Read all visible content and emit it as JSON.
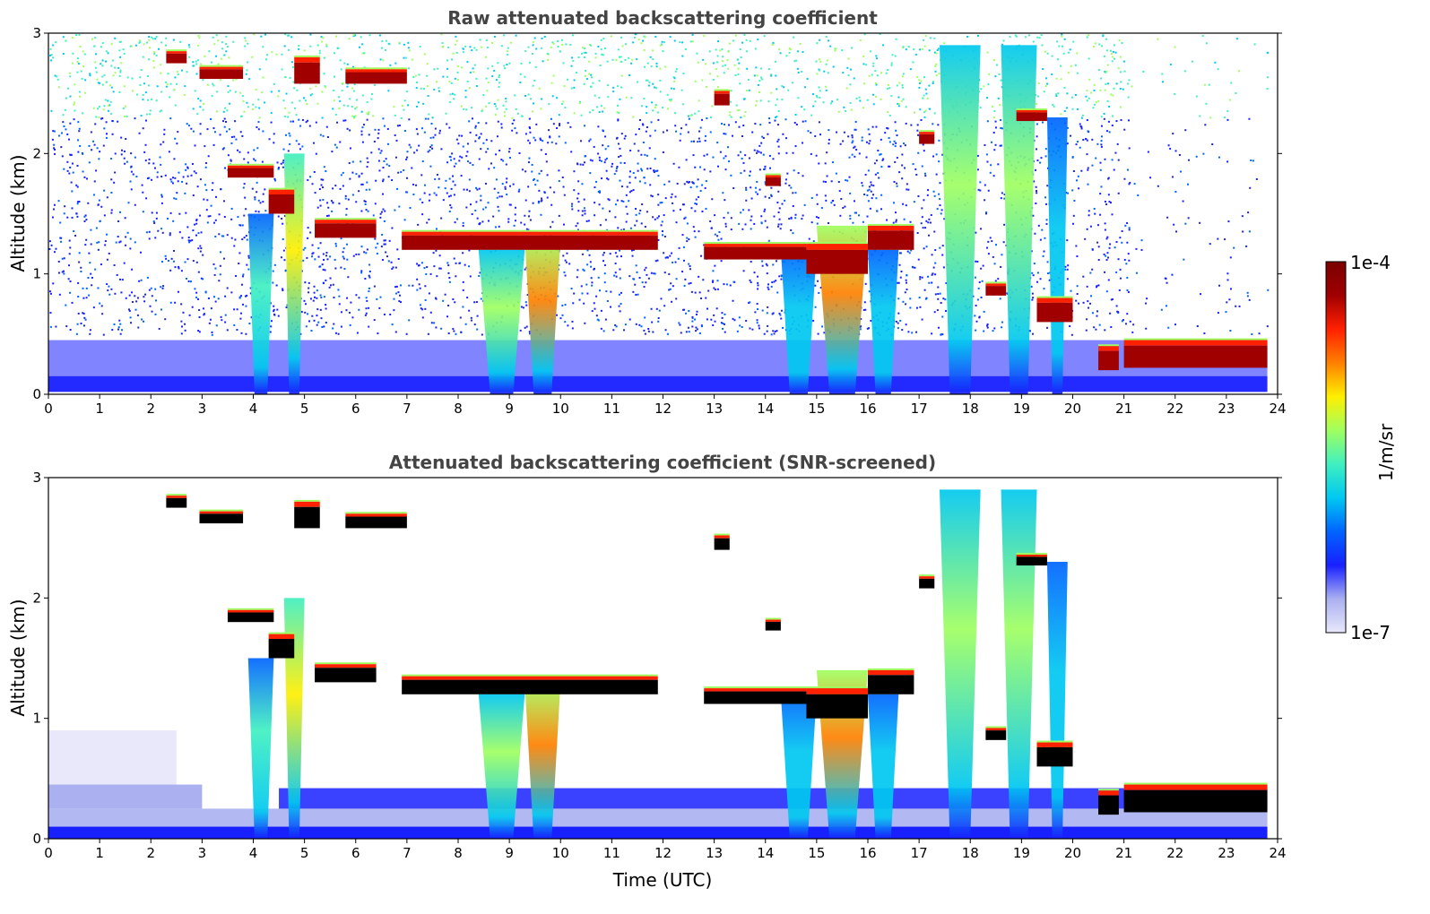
{
  "colors": {
    "colormap": [
      "#e8e8fa",
      "#aab0f0",
      "#1820ff",
      "#0064ff",
      "#00c8f0",
      "#40f0c0",
      "#a0ff60",
      "#ffef00",
      "#ff8000",
      "#ff2000",
      "#a00000",
      "#7a0000"
    ],
    "saturated": "#000000",
    "frame": "#000000",
    "title_text": "#444444"
  },
  "chart_data": [
    {
      "type": "heatmap",
      "title": "Raw attenuated backscattering coefficient",
      "xlabel": "",
      "ylabel": "Altitude (km)",
      "xlim": [
        0,
        24
      ],
      "ylim": [
        0,
        3
      ],
      "xticks": [
        "0",
        "1",
        "2",
        "3",
        "4",
        "5",
        "6",
        "7",
        "8",
        "9",
        "10",
        "11",
        "12",
        "13",
        "14",
        "15",
        "16",
        "17",
        "18",
        "19",
        "20",
        "21",
        "22",
        "23",
        "24"
      ],
      "yticks": [
        "0",
        "1",
        "2",
        "3"
      ],
      "background_noise": true,
      "cloud_layers": [
        {
          "t": [
            2.3,
            2.7
          ],
          "z": [
            2.75,
            2.85
          ]
        },
        {
          "t": [
            2.95,
            3.8
          ],
          "z": [
            2.62,
            2.72
          ]
        },
        {
          "t": [
            4.8,
            5.3
          ],
          "z": [
            2.58,
            2.8
          ]
        },
        {
          "t": [
            5.8,
            7.0
          ],
          "z": [
            2.58,
            2.7
          ]
        },
        {
          "t": [
            3.5,
            4.4
          ],
          "z": [
            1.8,
            1.9
          ]
        },
        {
          "t": [
            4.3,
            4.8
          ],
          "z": [
            1.5,
            1.7
          ]
        },
        {
          "t": [
            5.2,
            6.4
          ],
          "z": [
            1.3,
            1.45
          ]
        },
        {
          "t": [
            6.9,
            11.9
          ],
          "z": [
            1.2,
            1.35
          ]
        },
        {
          "t": [
            12.8,
            14.8
          ],
          "z": [
            1.12,
            1.25
          ]
        },
        {
          "t": [
            14.8,
            16.0
          ],
          "z": [
            1.0,
            1.25
          ]
        },
        {
          "t": [
            16.0,
            16.9
          ],
          "z": [
            1.2,
            1.4
          ]
        },
        {
          "t": [
            14.0,
            14.3
          ],
          "z": [
            1.73,
            1.82
          ]
        },
        {
          "t": [
            13.0,
            13.3
          ],
          "z": [
            2.4,
            2.52
          ]
        },
        {
          "t": [
            17.0,
            17.3
          ],
          "z": [
            2.08,
            2.18
          ]
        },
        {
          "t": [
            18.9,
            19.5
          ],
          "z": [
            2.27,
            2.36
          ]
        },
        {
          "t": [
            18.3,
            18.7
          ],
          "z": [
            0.82,
            0.92
          ]
        },
        {
          "t": [
            19.3,
            20.0
          ],
          "z": [
            0.6,
            0.8
          ]
        },
        {
          "t": [
            20.5,
            20.9
          ],
          "z": [
            0.2,
            0.4
          ]
        },
        {
          "t": [
            21.0,
            23.8
          ],
          "z": [
            0.22,
            0.45
          ]
        }
      ],
      "precipitation_columns": [
        {
          "t": [
            3.9,
            4.4
          ],
          "z_top": 1.5,
          "peak": "cyan-green"
        },
        {
          "t": [
            4.6,
            5.0
          ],
          "z_top": 2.0,
          "peak": "yellow"
        },
        {
          "t": [
            8.4,
            9.3
          ],
          "z_top": 1.2,
          "peak": "green"
        },
        {
          "t": [
            9.3,
            10.0
          ],
          "z_top": 1.3,
          "peak": "orange"
        },
        {
          "t": [
            14.3,
            15.0
          ],
          "z_top": 1.2,
          "peak": "cyan"
        },
        {
          "t": [
            15.0,
            16.0
          ],
          "z_top": 1.4,
          "peak": "orange"
        },
        {
          "t": [
            16.0,
            16.6
          ],
          "z_top": 1.2,
          "peak": "cyan"
        },
        {
          "t": [
            17.4,
            18.2
          ],
          "z_top": 2.9,
          "peak": "green"
        },
        {
          "t": [
            18.6,
            19.3
          ],
          "z_top": 2.9,
          "peak": "yellow-green"
        },
        {
          "t": [
            19.5,
            19.9
          ],
          "z_top": 2.3,
          "peak": "cyan"
        }
      ]
    },
    {
      "type": "heatmap",
      "title": "Attenuated backscattering coefficient (SNR-screened)",
      "xlabel": "Time (UTC)",
      "ylabel": "Altitude (km)",
      "xlim": [
        0,
        24
      ],
      "ylim": [
        0,
        3
      ],
      "xticks": [
        "0",
        "1",
        "2",
        "3",
        "4",
        "5",
        "6",
        "7",
        "8",
        "9",
        "10",
        "11",
        "12",
        "13",
        "14",
        "15",
        "16",
        "17",
        "18",
        "19",
        "20",
        "21",
        "22",
        "23",
        "24"
      ],
      "yticks": [
        "0",
        "1",
        "2",
        "3"
      ],
      "background_noise": false,
      "saturated_in_black": true,
      "same_features_as_panel": 0
    }
  ],
  "colorbar": {
    "max_label": "1e-4",
    "min_label": "1e-7",
    "unit_label": "1/m/sr"
  }
}
